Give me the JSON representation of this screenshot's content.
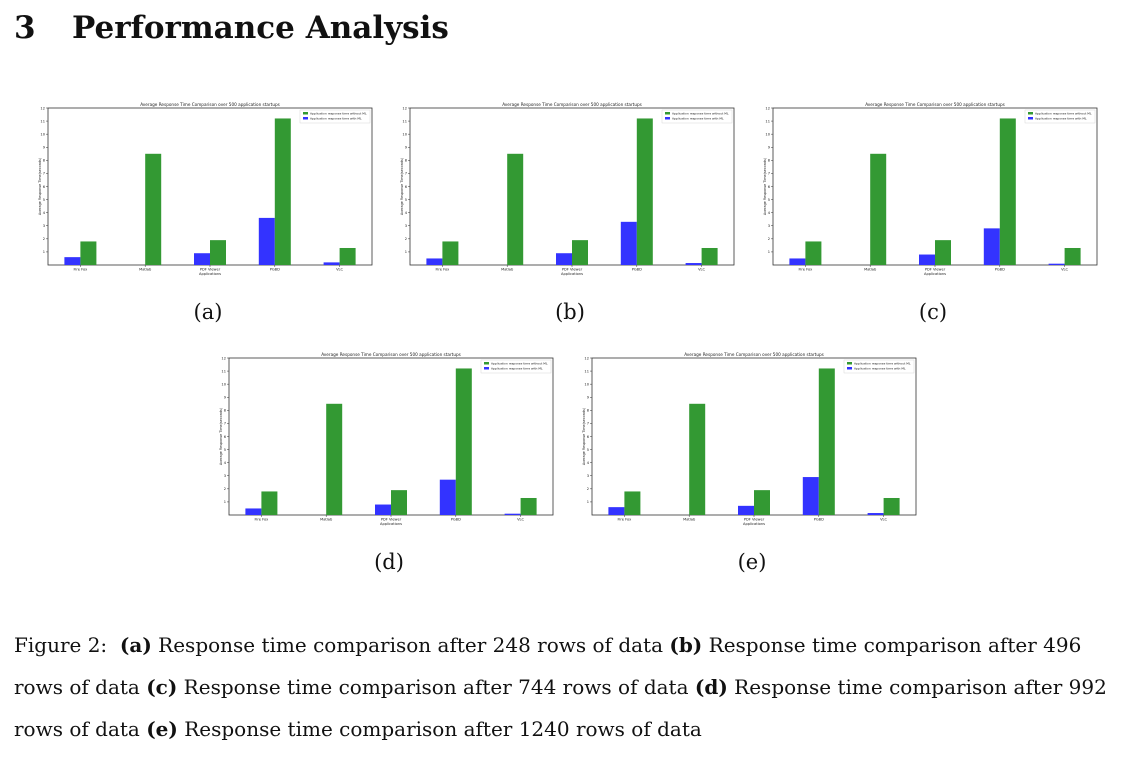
{
  "section": {
    "number": "3",
    "title": "Performance Analysis"
  },
  "figure": {
    "caption_prefix": "Figure 2:",
    "caption_parts": [
      {
        "label": "(a)",
        "text": "Response time comparison after 248 rows of data"
      },
      {
        "label": "(b)",
        "text": "Response time comparison after 496 rows of data"
      },
      {
        "label": "(c)",
        "text": "Response time comparison after 744 rows of data"
      },
      {
        "label": "(d)",
        "text": "Response time comparison after 992 rows of data"
      },
      {
        "label": "(e)",
        "text": "Response time comparison after 1240 rows of data"
      }
    ],
    "panel_labels": [
      "(a)",
      "(b)",
      "(c)",
      "(d)",
      "(e)"
    ]
  },
  "chart_data": [
    {
      "type": "bar",
      "title": "Average Response Time Comparison over 500 application startups",
      "xlabel": "Applications",
      "ylabel": "Average Response Time(seconds)",
      "categories": [
        "Fire Fox",
        "Matlab",
        "PDF Viewer",
        "PGBD",
        "VLC"
      ],
      "ylim": [
        0,
        12
      ],
      "yticks": [
        1,
        2,
        3,
        4,
        5,
        6,
        7,
        8,
        9,
        10,
        11,
        12
      ],
      "legend_position": "top-right",
      "series": [
        {
          "name": "Application response time without ML",
          "color": "#339933",
          "values": [
            1.8,
            8.5,
            1.9,
            11.2,
            1.3
          ]
        },
        {
          "name": "Application response time with ML",
          "color": "#3333ff",
          "values": [
            0.6,
            0,
            0.9,
            3.6,
            0.2
          ]
        }
      ]
    },
    {
      "type": "bar",
      "title": "Average Response Time Comparison over 500 application startups",
      "xlabel": "Applications",
      "ylabel": "Average Response Time(seconds)",
      "categories": [
        "Fire Fox",
        "Matlab",
        "PDF Viewer",
        "PGBD",
        "VLC"
      ],
      "ylim": [
        0,
        12
      ],
      "yticks": [
        1,
        2,
        3,
        4,
        5,
        6,
        7,
        8,
        9,
        10,
        11,
        12
      ],
      "legend_position": "top-right",
      "series": [
        {
          "name": "Application response time without ML",
          "color": "#339933",
          "values": [
            1.8,
            8.5,
            1.9,
            11.2,
            1.3
          ]
        },
        {
          "name": "Application response time with ML",
          "color": "#3333ff",
          "values": [
            0.5,
            0,
            0.9,
            3.3,
            0.15
          ]
        }
      ]
    },
    {
      "type": "bar",
      "title": "Average Response Time Comparison over 500 application startups",
      "xlabel": "Applications",
      "ylabel": "Average Response Time(seconds)",
      "categories": [
        "Fire Fox",
        "Matlab",
        "PDF Viewer",
        "PGBD",
        "VLC"
      ],
      "ylim": [
        0,
        12
      ],
      "yticks": [
        1,
        2,
        3,
        4,
        5,
        6,
        7,
        8,
        9,
        10,
        11,
        12
      ],
      "legend_position": "top-right",
      "series": [
        {
          "name": "Application response time without ML",
          "color": "#339933",
          "values": [
            1.8,
            8.5,
            1.9,
            11.2,
            1.3
          ]
        },
        {
          "name": "Application response time with ML",
          "color": "#3333ff",
          "values": [
            0.5,
            0,
            0.8,
            2.8,
            0.1
          ]
        }
      ]
    },
    {
      "type": "bar",
      "title": "Average Response Time Comparison over 500 application startups",
      "xlabel": "Applications",
      "ylabel": "Average Response Time(seconds)",
      "categories": [
        "Fire Fox",
        "Matlab",
        "PDF Viewer",
        "PGBD",
        "VLC"
      ],
      "ylim": [
        0,
        12
      ],
      "yticks": [
        1,
        2,
        3,
        4,
        5,
        6,
        7,
        8,
        9,
        10,
        11,
        12
      ],
      "legend_position": "top-right",
      "series": [
        {
          "name": "Application response time without ML",
          "color": "#339933",
          "values": [
            1.8,
            8.5,
            1.9,
            11.2,
            1.3
          ]
        },
        {
          "name": "Application response time with ML",
          "color": "#3333ff",
          "values": [
            0.5,
            0,
            0.8,
            2.7,
            0.1
          ]
        }
      ]
    },
    {
      "type": "bar",
      "title": "Average Response Time Comparison over 500 application startups",
      "xlabel": "Applications",
      "ylabel": "Average Response Time(seconds)",
      "categories": [
        "Fire Fox",
        "Matlab",
        "PDF Viewer",
        "PGBD",
        "VLC"
      ],
      "ylim": [
        0,
        12
      ],
      "yticks": [
        1,
        2,
        3,
        4,
        5,
        6,
        7,
        8,
        9,
        10,
        11,
        12
      ],
      "legend_position": "top-right",
      "series": [
        {
          "name": "Application response time without ML",
          "color": "#339933",
          "values": [
            1.8,
            8.5,
            1.9,
            11.2,
            1.3
          ]
        },
        {
          "name": "Application response time with ML",
          "color": "#3333ff",
          "values": [
            0.6,
            0,
            0.7,
            2.9,
            0.15
          ]
        }
      ]
    }
  ]
}
